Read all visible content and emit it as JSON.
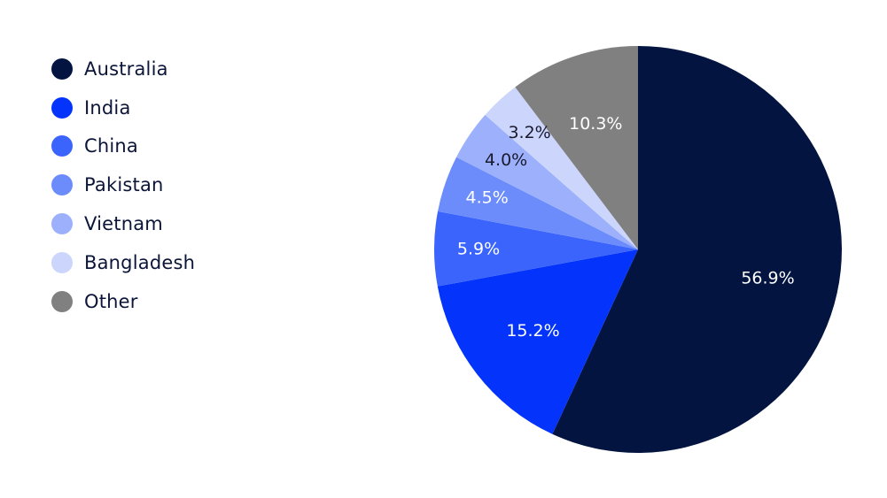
{
  "chart_data": {
    "type": "pie",
    "categories": [
      "Australia",
      "India",
      "China",
      "Pakistan",
      "Vietnam",
      "Bangladesh",
      "Other"
    ],
    "values": [
      56.9,
      15.2,
      5.9,
      4.5,
      4.0,
      3.2,
      10.3
    ],
    "value_labels": [
      "56.9%",
      "15.2%",
      "5.9%",
      "4.5%",
      "4.0%",
      "3.2%",
      "10.3%"
    ],
    "colors": [
      "#02143f",
      "#0434fc",
      "#3b64fc",
      "#6c8cfc",
      "#9cb0fc",
      "#ccd6fc",
      "#808080"
    ],
    "label_colors": [
      "#ffffff",
      "#ffffff",
      "#ffffff",
      "#ffffff",
      "#1a1a2e",
      "#1a1a2e",
      "#ffffff"
    ],
    "start_angle_deg": 0,
    "direction": "clockwise",
    "legend_position": "left",
    "legend_marker": "circle",
    "title": ""
  }
}
